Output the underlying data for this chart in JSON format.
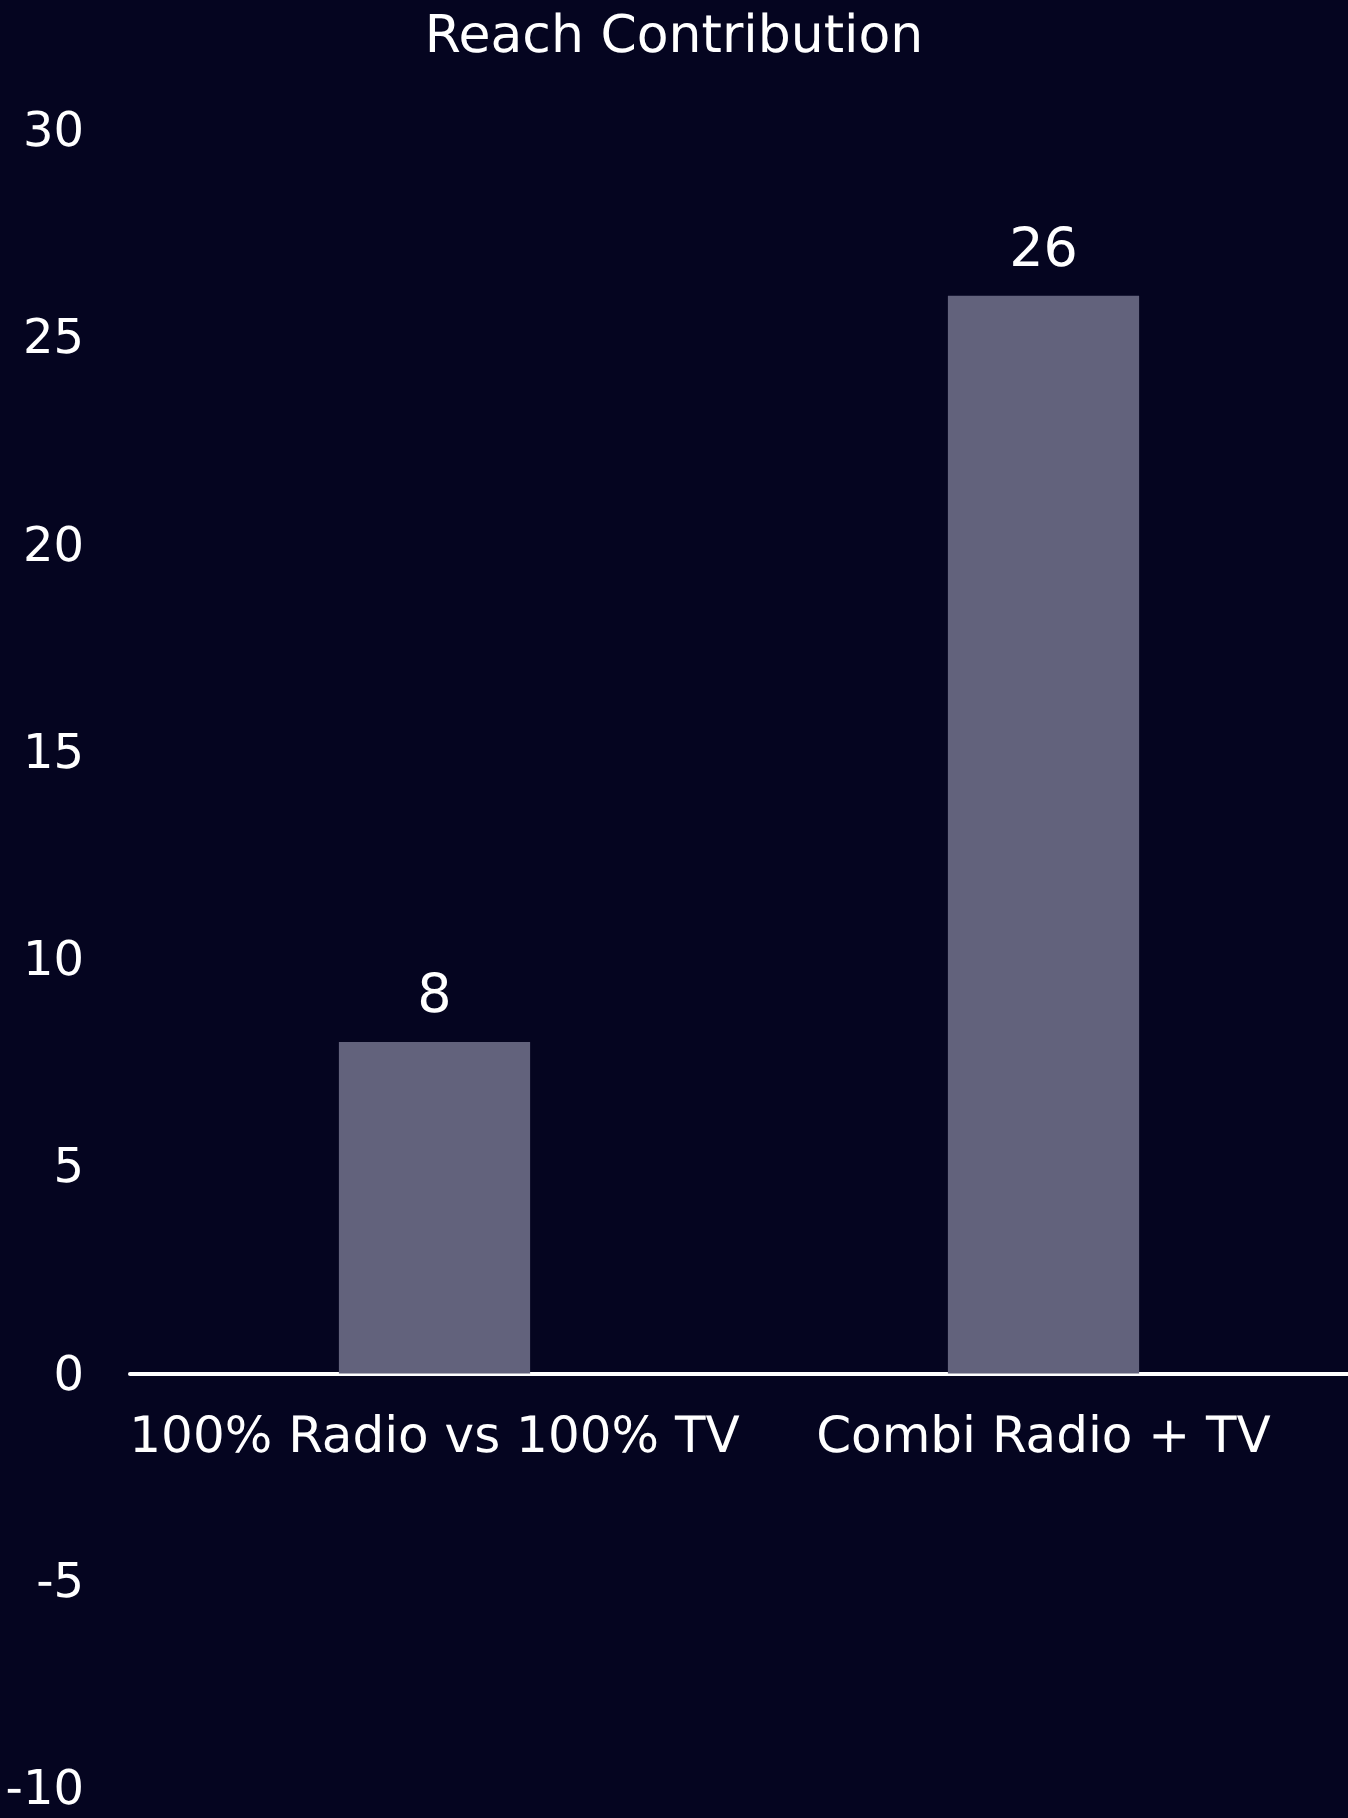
{
  "chart_data": {
    "type": "bar",
    "title": "Reach Contribution",
    "categories": [
      "100% Radio vs 100% TV",
      "Combi Radio + TV"
    ],
    "values": [
      8,
      26
    ],
    "color": "#62627c",
    "ylim": [
      -10,
      30
    ],
    "yticks": [
      -10,
      -5,
      0,
      5,
      10,
      15,
      20,
      25,
      30
    ],
    "data_labels": true
  }
}
